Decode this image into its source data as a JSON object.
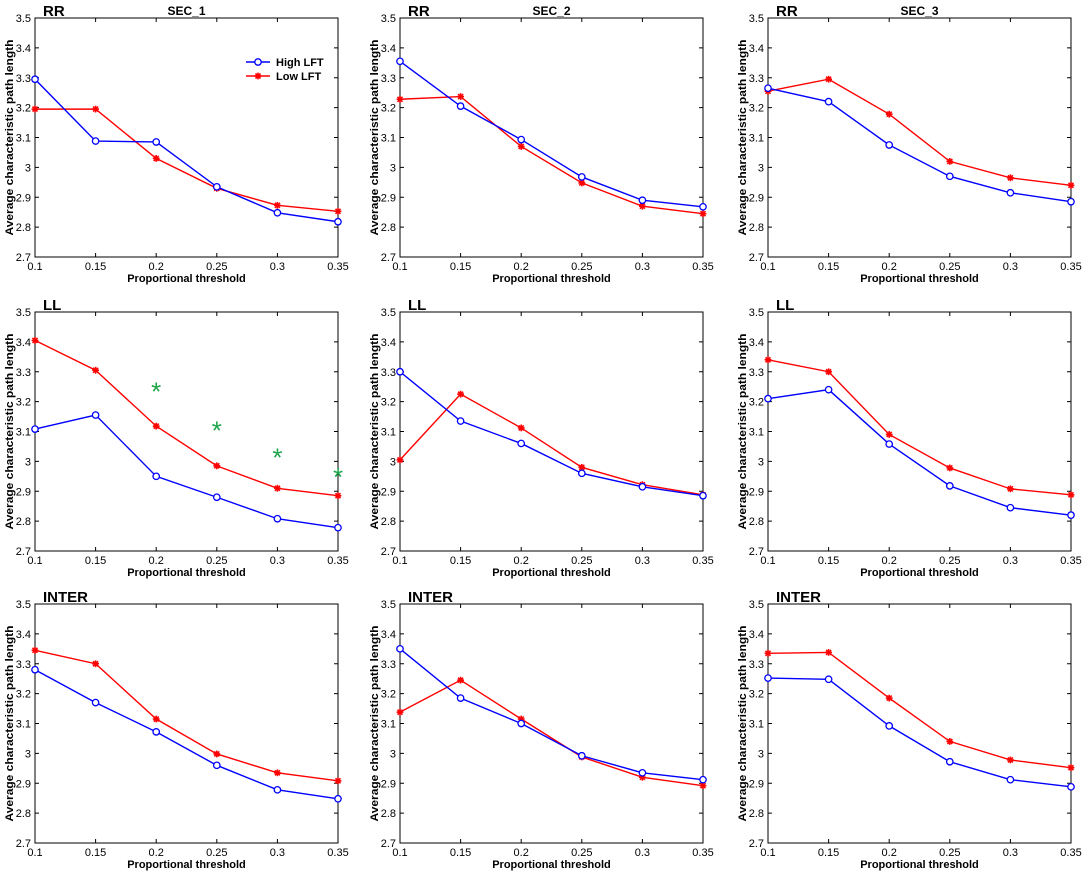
{
  "figure": {
    "x_axis_label": "Proportional threshold",
    "y_axis_label": "Average characteristic path length",
    "column_titles": [
      "SEC_1",
      "SEC_2",
      "SEC_3"
    ],
    "row_titles": [
      "RR",
      "LL",
      "INTER"
    ],
    "legend": {
      "entries": [
        "High LFT",
        "Low LFT"
      ]
    },
    "colors": {
      "high": "#0000ff",
      "low": "#ff0000",
      "significance": "#1ea54b"
    },
    "significance_marker": "*"
  },
  "chart_data": [
    {
      "type": "line",
      "row_title": "RR",
      "column_title": "SEC_1",
      "x": [
        0.1,
        0.15,
        0.2,
        0.25,
        0.3,
        0.35
      ],
      "xlim": [
        0.1,
        0.35
      ],
      "ylim": [
        2.7,
        3.5
      ],
      "xticks": [
        "0.1",
        "0.15",
        "0.2",
        "0.25",
        "0.3",
        "0.35"
      ],
      "yticks": [
        "2.7",
        "2.8",
        "2.9",
        "3",
        "3.1",
        "3.2",
        "3.3",
        "3.4",
        "3.5"
      ],
      "xlabel": "Proportional threshold",
      "ylabel": "Average characteristic path length",
      "legend_position": "top-right",
      "series": [
        {
          "name": "High LFT",
          "marker": "circle",
          "values": [
            3.295,
            3.088,
            3.085,
            2.935,
            2.848,
            2.818
          ]
        },
        {
          "name": "Low LFT",
          "marker": "star",
          "values": [
            3.195,
            3.195,
            3.03,
            2.93,
            2.873,
            2.853
          ]
        }
      ],
      "significance": []
    },
    {
      "type": "line",
      "row_title": "RR",
      "column_title": "SEC_2",
      "x": [
        0.1,
        0.15,
        0.2,
        0.25,
        0.3,
        0.35
      ],
      "xlim": [
        0.1,
        0.35
      ],
      "ylim": [
        2.7,
        3.5
      ],
      "xticks": [
        "0.1",
        "0.15",
        "0.2",
        "0.25",
        "0.3",
        "0.35"
      ],
      "yticks": [
        "2.7",
        "2.8",
        "2.9",
        "3",
        "3.1",
        "3.2",
        "3.3",
        "3.4",
        "3.5"
      ],
      "xlabel": "Proportional threshold",
      "ylabel": "Average characteristic path length",
      "series": [
        {
          "name": "High LFT",
          "marker": "circle",
          "values": [
            3.355,
            3.205,
            3.093,
            2.968,
            2.89,
            2.868
          ]
        },
        {
          "name": "Low LFT",
          "marker": "star",
          "values": [
            3.228,
            3.237,
            3.07,
            2.948,
            2.87,
            2.845
          ]
        }
      ],
      "significance": []
    },
    {
      "type": "line",
      "row_title": "RR",
      "column_title": "SEC_3",
      "x": [
        0.1,
        0.15,
        0.2,
        0.25,
        0.3,
        0.35
      ],
      "xlim": [
        0.1,
        0.35
      ],
      "ylim": [
        2.7,
        3.5
      ],
      "xticks": [
        "0.1",
        "0.15",
        "0.2",
        "0.25",
        "0.3",
        "0.35"
      ],
      "yticks": [
        "2.7",
        "2.8",
        "2.9",
        "3",
        "3.1",
        "3.2",
        "3.3",
        "3.4",
        "3.5"
      ],
      "xlabel": "Proportional threshold",
      "ylabel": "Average characteristic path length",
      "series": [
        {
          "name": "High LFT",
          "marker": "circle",
          "values": [
            3.265,
            3.22,
            3.075,
            2.97,
            2.915,
            2.885
          ]
        },
        {
          "name": "Low LFT",
          "marker": "star",
          "values": [
            3.255,
            3.295,
            3.178,
            3.02,
            2.965,
            2.94
          ]
        }
      ],
      "significance": []
    },
    {
      "type": "line",
      "row_title": "LL",
      "column_title": "",
      "x": [
        0.1,
        0.15,
        0.2,
        0.25,
        0.3,
        0.35
      ],
      "xlim": [
        0.1,
        0.35
      ],
      "ylim": [
        2.7,
        3.5
      ],
      "xticks": [
        "0.1",
        "0.15",
        "0.2",
        "0.25",
        "0.3",
        "0.35"
      ],
      "yticks": [
        "2.7",
        "2.8",
        "2.9",
        "3",
        "3.1",
        "3.2",
        "3.3",
        "3.4",
        "3.5"
      ],
      "xlabel": "Proportional threshold",
      "ylabel": "Average characteristic path length",
      "series": [
        {
          "name": "High LFT",
          "marker": "circle",
          "values": [
            3.108,
            3.155,
            2.95,
            2.88,
            2.808,
            2.778
          ]
        },
        {
          "name": "Low LFT",
          "marker": "star",
          "values": [
            3.405,
            3.305,
            3.118,
            2.985,
            2.91,
            2.885
          ]
        }
      ],
      "significance": [
        {
          "x": 0.2,
          "y": 3.25
        },
        {
          "x": 0.25,
          "y": 3.12
        },
        {
          "x": 0.3,
          "y": 3.03
        },
        {
          "x": 0.35,
          "y": 2.965
        }
      ]
    },
    {
      "type": "line",
      "row_title": "LL",
      "column_title": "",
      "x": [
        0.1,
        0.15,
        0.2,
        0.25,
        0.3,
        0.35
      ],
      "xlim": [
        0.1,
        0.35
      ],
      "ylim": [
        2.7,
        3.5
      ],
      "xticks": [
        "0.1",
        "0.15",
        "0.2",
        "0.25",
        "0.3",
        "0.35"
      ],
      "yticks": [
        "2.7",
        "2.8",
        "2.9",
        "3",
        "3.1",
        "3.2",
        "3.3",
        "3.4",
        "3.5"
      ],
      "xlabel": "Proportional threshold",
      "ylabel": "Average characteristic path length",
      "series": [
        {
          "name": "High LFT",
          "marker": "circle",
          "values": [
            3.3,
            3.135,
            3.06,
            2.96,
            2.915,
            2.885
          ]
        },
        {
          "name": "Low LFT",
          "marker": "star",
          "values": [
            3.005,
            3.225,
            3.112,
            2.98,
            2.922,
            2.888
          ]
        }
      ],
      "significance": []
    },
    {
      "type": "line",
      "row_title": "LL",
      "column_title": "",
      "x": [
        0.1,
        0.15,
        0.2,
        0.25,
        0.3,
        0.35
      ],
      "xlim": [
        0.1,
        0.35
      ],
      "ylim": [
        2.7,
        3.5
      ],
      "xticks": [
        "0.1",
        "0.15",
        "0.2",
        "0.25",
        "0.3",
        "0.35"
      ],
      "yticks": [
        "2.7",
        "2.8",
        "2.9",
        "3",
        "3.1",
        "3.2",
        "3.3",
        "3.4",
        "3.5"
      ],
      "xlabel": "Proportional threshold",
      "ylabel": "Average characteristic path length",
      "series": [
        {
          "name": "High LFT",
          "marker": "circle",
          "values": [
            3.21,
            3.24,
            3.058,
            2.918,
            2.845,
            2.82
          ]
        },
        {
          "name": "Low LFT",
          "marker": "star",
          "values": [
            3.34,
            3.3,
            3.09,
            2.978,
            2.908,
            2.888
          ]
        }
      ],
      "significance": []
    },
    {
      "type": "line",
      "row_title": "INTER",
      "column_title": "",
      "x": [
        0.1,
        0.15,
        0.2,
        0.25,
        0.3,
        0.35
      ],
      "xlim": [
        0.1,
        0.35
      ],
      "ylim": [
        2.7,
        3.5
      ],
      "xticks": [
        "0.1",
        "0.15",
        "0.2",
        "0.25",
        "0.3",
        "0.35"
      ],
      "yticks": [
        "2.7",
        "2.8",
        "2.9",
        "3",
        "3.1",
        "3.2",
        "3.3",
        "3.4",
        "3.5"
      ],
      "xlabel": "Proportional threshold",
      "ylabel": "Average characteristic path length",
      "series": [
        {
          "name": "High LFT",
          "marker": "circle",
          "values": [
            3.28,
            3.17,
            3.072,
            2.96,
            2.878,
            2.848
          ]
        },
        {
          "name": "Low LFT",
          "marker": "star",
          "values": [
            3.345,
            3.3,
            3.115,
            2.998,
            2.935,
            2.908
          ]
        }
      ],
      "significance": []
    },
    {
      "type": "line",
      "row_title": "INTER",
      "column_title": "",
      "x": [
        0.1,
        0.15,
        0.2,
        0.25,
        0.3,
        0.35
      ],
      "xlim": [
        0.1,
        0.35
      ],
      "ylim": [
        2.7,
        3.5
      ],
      "xticks": [
        "0.1",
        "0.15",
        "0.2",
        "0.25",
        "0.3",
        "0.35"
      ],
      "yticks": [
        "2.7",
        "2.8",
        "2.9",
        "3",
        "3.1",
        "3.2",
        "3.3",
        "3.4",
        "3.5"
      ],
      "xlabel": "Proportional threshold",
      "ylabel": "Average characteristic path length",
      "series": [
        {
          "name": "High LFT",
          "marker": "circle",
          "values": [
            3.35,
            3.185,
            3.1,
            2.992,
            2.935,
            2.912
          ]
        },
        {
          "name": "Low LFT",
          "marker": "star",
          "values": [
            3.138,
            3.245,
            3.115,
            2.988,
            2.92,
            2.892
          ]
        }
      ],
      "significance": []
    },
    {
      "type": "line",
      "row_title": "INTER",
      "column_title": "",
      "x": [
        0.1,
        0.15,
        0.2,
        0.25,
        0.3,
        0.35
      ],
      "xlim": [
        0.1,
        0.35
      ],
      "ylim": [
        2.7,
        3.5
      ],
      "xticks": [
        "0.1",
        "0.15",
        "0.2",
        "0.25",
        "0.3",
        "0.35"
      ],
      "yticks": [
        "2.7",
        "2.8",
        "2.9",
        "3",
        "3.1",
        "3.2",
        "3.3",
        "3.4",
        "3.5"
      ],
      "xlabel": "Proportional threshold",
      "ylabel": "Average characteristic path length",
      "series": [
        {
          "name": "High LFT",
          "marker": "circle",
          "values": [
            3.252,
            3.248,
            3.092,
            2.972,
            2.912,
            2.888
          ]
        },
        {
          "name": "Low LFT",
          "marker": "star",
          "values": [
            3.335,
            3.338,
            3.185,
            3.04,
            2.978,
            2.952
          ]
        }
      ],
      "significance": []
    }
  ]
}
